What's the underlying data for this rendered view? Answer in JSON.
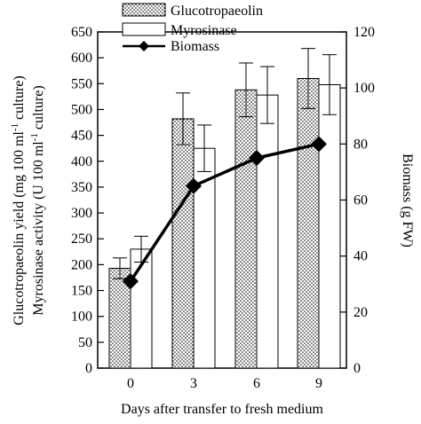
{
  "chart_data": {
    "type": "bar",
    "categories": [
      "0",
      "3",
      "6",
      "9"
    ],
    "xlabel": "Days after transfer to fresh medium",
    "ylabel_left": [
      "Glucotropaeolin yield (mg 100 ml",
      "-1",
      " culture)"
    ],
    "ylabel_left2": [
      "Myrosinase activity (U 100 ml",
      "-1",
      " culture)"
    ],
    "ylabel_right": "Biomass (g FW)",
    "ylim_left": [
      0,
      650
    ],
    "yticks_left": [
      0,
      50,
      100,
      150,
      200,
      250,
      300,
      350,
      400,
      450,
      500,
      550,
      600,
      650
    ],
    "ylim_right": [
      0,
      120
    ],
    "yticks_right": [
      0,
      20,
      40,
      60,
      80,
      100,
      120
    ],
    "legend_position": "top-center",
    "series": [
      {
        "name": "Glucotropaeolin",
        "kind": "bar",
        "axis": "left",
        "pattern": "dotted",
        "values": [
          193,
          482,
          538,
          560
        ],
        "errors": [
          20,
          50,
          52,
          58
        ]
      },
      {
        "name": "Myrosinase",
        "kind": "bar",
        "axis": "left",
        "pattern": "white",
        "values": [
          230,
          425,
          528,
          548
        ],
        "errors": [
          25,
          45,
          55,
          58
        ]
      },
      {
        "name": "Biomass",
        "kind": "line",
        "axis": "right",
        "marker": "diamond",
        "values": [
          31,
          65,
          75,
          80
        ],
        "errors": [
          0,
          0,
          0,
          0
        ]
      }
    ]
  }
}
